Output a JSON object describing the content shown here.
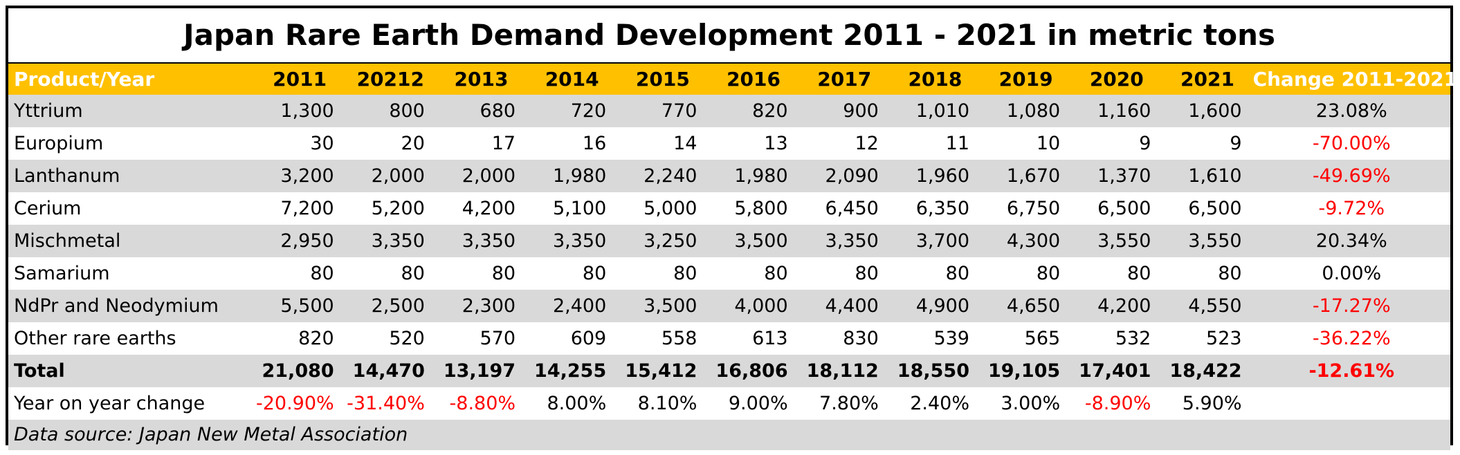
{
  "chart_data": {
    "type": "table",
    "title": "Japan Rare Earth Demand Development 2011 - 2021 in metric tons",
    "header_label": "Product/Year",
    "years": [
      "2011",
      "20212",
      "2013",
      "2014",
      "2015",
      "2016",
      "2017",
      "2018",
      "2019",
      "2020",
      "2021"
    ],
    "change_header": "Change 2011-2021",
    "rows": [
      {
        "name": "Yttrium",
        "values": [
          "1,300",
          "800",
          "680",
          "720",
          "770",
          "820",
          "900",
          "1,010",
          "1,080",
          "1,160",
          "1,600"
        ],
        "change": "23.08%"
      },
      {
        "name": "Europium",
        "values": [
          "30",
          "20",
          "17",
          "16",
          "14",
          "13",
          "12",
          "11",
          "10",
          "9",
          "9"
        ],
        "change": "-70.00%"
      },
      {
        "name": "Lanthanum",
        "values": [
          "3,200",
          "2,000",
          "2,000",
          "1,980",
          "2,240",
          "1,980",
          "2,090",
          "1,960",
          "1,670",
          "1,370",
          "1,610"
        ],
        "change": "-49.69%"
      },
      {
        "name": "Cerium",
        "values": [
          "7,200",
          "5,200",
          "4,200",
          "5,100",
          "5,000",
          "5,800",
          "6,450",
          "6,350",
          "6,750",
          "6,500",
          "6,500"
        ],
        "change": "-9.72%"
      },
      {
        "name": "Mischmetal",
        "values": [
          "2,950",
          "3,350",
          "3,350",
          "3,350",
          "3,250",
          "3,500",
          "3,350",
          "3,700",
          "4,300",
          "3,550",
          "3,550"
        ],
        "change": "20.34%"
      },
      {
        "name": "Samarium",
        "values": [
          "80",
          "80",
          "80",
          "80",
          "80",
          "80",
          "80",
          "80",
          "80",
          "80",
          "80"
        ],
        "change": "0.00%"
      },
      {
        "name": "NdPr and Neodymium",
        "values": [
          "5,500",
          "2,500",
          "2,300",
          "2,400",
          "3,500",
          "4,000",
          "4,400",
          "4,900",
          "4,650",
          "4,200",
          "4,550"
        ],
        "change": "-17.27%"
      },
      {
        "name": "Other rare earths",
        "values": [
          "820",
          "520",
          "570",
          "609",
          "558",
          "613",
          "830",
          "539",
          "565",
          "532",
          "523"
        ],
        "change": "-36.22%"
      },
      {
        "name": "Total",
        "values": [
          "21,080",
          "14,470",
          "13,197",
          "14,255",
          "15,412",
          "16,806",
          "18,112",
          "18,550",
          "19,105",
          "17,401",
          "18,422"
        ],
        "change": "-12.61%",
        "bold": true
      },
      {
        "name": "Year on year change",
        "values": [
          "-20.90%",
          "-31.40%",
          "-8.80%",
          "8.00%",
          "8.10%",
          "9.00%",
          "7.80%",
          "2.40%",
          "3.00%",
          "-8.90%",
          "5.90%"
        ],
        "change": ""
      }
    ],
    "source": "Data source: Japan New Metal Association"
  },
  "colors": {
    "header_bg": "#ffc000",
    "shade": "#d9d9d9",
    "negative": "#ff0000"
  }
}
